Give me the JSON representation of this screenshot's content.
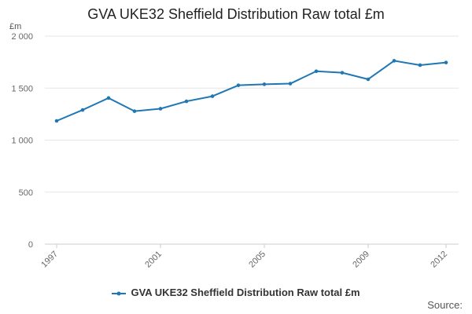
{
  "chart_data": {
    "type": "line",
    "title": "GVA UKE32 Sheffield Distribution Raw total £m",
    "ylabel": "£m",
    "xlabel": "",
    "x": [
      1997,
      1998,
      1999,
      2000,
      2001,
      2002,
      2003,
      2004,
      2005,
      2006,
      2007,
      2008,
      2009,
      2010,
      2011,
      2012
    ],
    "x_tick_labels": [
      "1997",
      "2001",
      "2005",
      "2009",
      "2012"
    ],
    "y_tick_labels": [
      "0",
      "500",
      "1 000",
      "1 500",
      "2 000"
    ],
    "y_ticks": [
      0,
      500,
      1000,
      1500,
      2000
    ],
    "ylim": [
      0,
      2000
    ],
    "grid": true,
    "legend_position": "bottom",
    "series": [
      {
        "name": "GVA UKE32 Sheffield Distribution Raw total £m",
        "color": "#1f77b4",
        "values": [
          1185,
          1290,
          1405,
          1278,
          1302,
          1373,
          1422,
          1527,
          1537,
          1543,
          1662,
          1648,
          1585,
          1763,
          1721,
          1746
        ]
      }
    ]
  },
  "source_label": "Source:"
}
